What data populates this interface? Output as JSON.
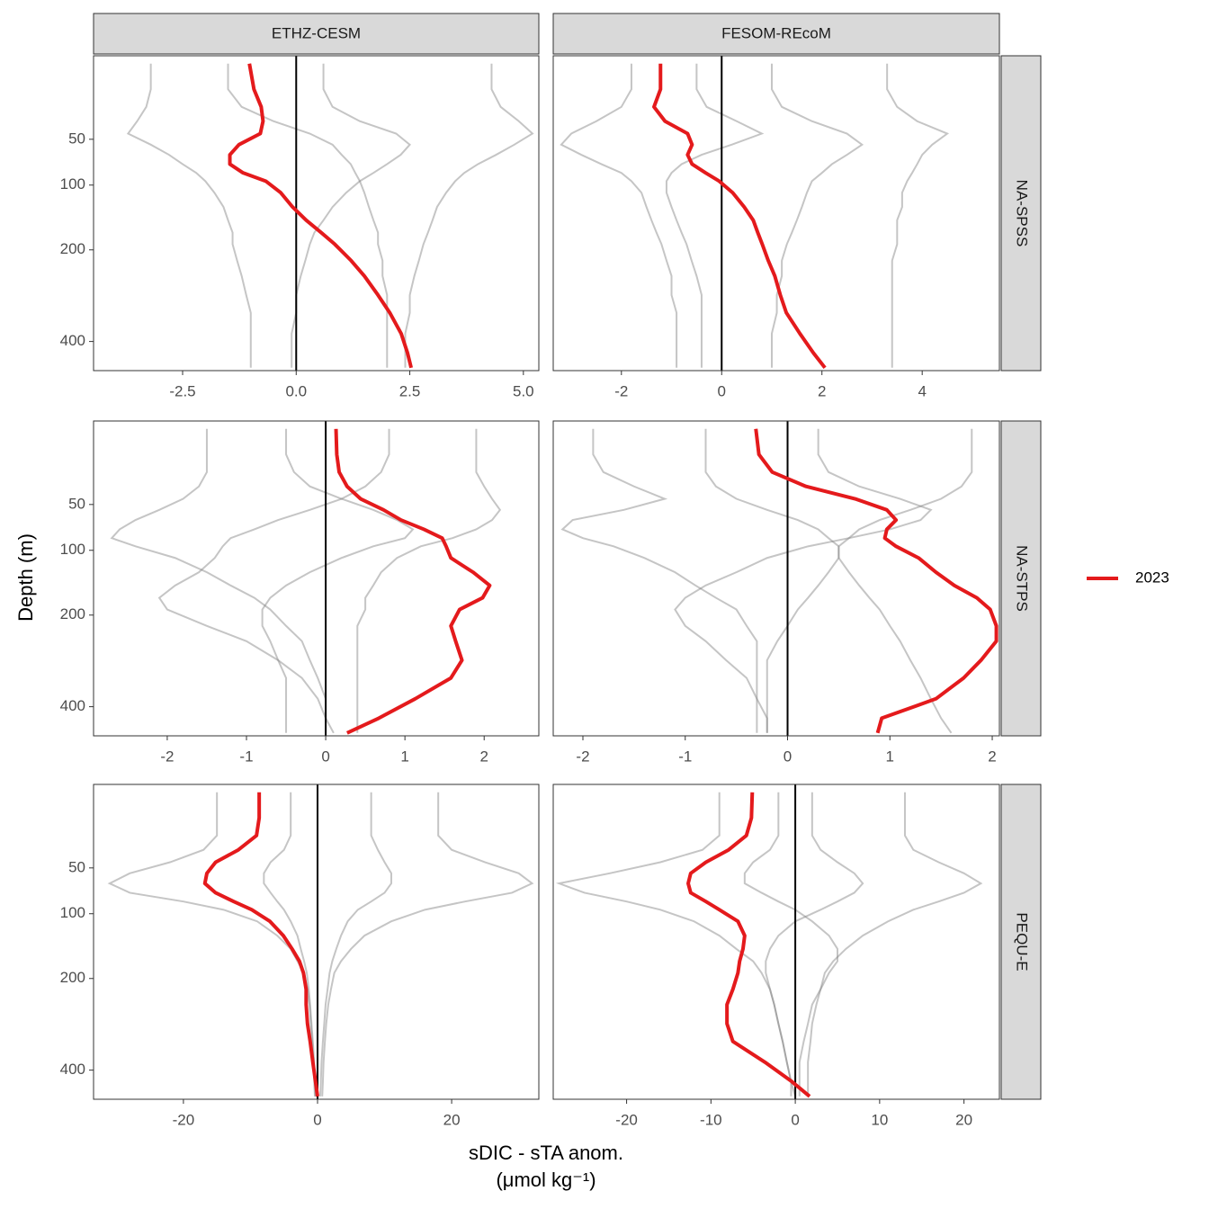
{
  "chart_data": {
    "type": "line",
    "xlabel": "sDIC - sTA anom.",
    "xunit": "(μmol kg⁻¹)",
    "ylabel": "Depth (m)",
    "columns": [
      "ETHZ-CESM",
      "FESOM-REcoM"
    ],
    "rows": [
      "NA-SPSS",
      "NA-STPS",
      "PEQU-E"
    ],
    "yscale": "sqrt",
    "yreversed": true,
    "ylim": [
      3,
      478
    ],
    "yticks": [
      50,
      100,
      200,
      400
    ],
    "depths": [
      5,
      15,
      25,
      35,
      45,
      55,
      65,
      75,
      85,
      95,
      110,
      130,
      150,
      170,
      190,
      220,
      250,
      290,
      330,
      380,
      430,
      470
    ],
    "vline": 0,
    "highlight": {
      "name": "2023",
      "color": "#e41a1c"
    },
    "others_color": "#7f7f7f",
    "panels": [
      {
        "xlim": [
          -4.46,
          5.34
        ],
        "xticks": [
          -2.5,
          {
            "value": 0,
            "label": "0.0"
          },
          2.5,
          {
            "value": 5,
            "label": "5.0"
          }
        ],
        "values": [
          -1.03,
          -0.93,
          -0.77,
          -0.73,
          -0.79,
          -1.26,
          -1.46,
          -1.46,
          -1.17,
          -0.67,
          -0.34,
          -0.08,
          0.22,
          0.55,
          0.85,
          1.21,
          1.5,
          1.8,
          2.06,
          2.31,
          2.45,
          2.53
        ],
        "others": [
          [
            -3.2,
            -3.2,
            -3.3,
            -3.5,
            -3.7,
            -3.2,
            -2.8,
            -2.5,
            -2.2,
            -2.0,
            -1.8,
            -1.6,
            -1.5,
            -1.4,
            -1.4,
            -1.3,
            -1.2,
            -1.1,
            -1.0,
            -1.0,
            -1.0,
            -1.0
          ],
          [
            4.3,
            4.3,
            4.5,
            4.9,
            5.2,
            4.8,
            4.4,
            4.0,
            3.7,
            3.5,
            3.3,
            3.1,
            3.0,
            2.9,
            2.8,
            2.7,
            2.6,
            2.5,
            2.5,
            2.4,
            2.4,
            2.4
          ],
          [
            0.6,
            0.6,
            0.8,
            1.4,
            2.2,
            2.5,
            2.3,
            2.0,
            1.7,
            1.4,
            1.1,
            0.8,
            0.6,
            0.4,
            0.3,
            0.2,
            0.1,
            0.0,
            0.0,
            -0.1,
            -0.1,
            -0.1
          ],
          [
            -1.5,
            -1.5,
            -1.2,
            -0.5,
            0.3,
            0.8,
            1.0,
            1.2,
            1.3,
            1.4,
            1.5,
            1.6,
            1.7,
            1.8,
            1.8,
            1.9,
            1.9,
            2.0,
            2.0,
            2.0,
            2.0,
            2.0
          ]
        ]
      },
      {
        "xlim": [
          -3.36,
          5.54
        ],
        "xticks": [
          -2,
          0,
          2,
          4
        ],
        "values": [
          -1.22,
          -1.22,
          -1.35,
          -1.13,
          -0.68,
          -0.59,
          -0.68,
          -0.59,
          -0.32,
          -0.05,
          0.22,
          0.45,
          0.63,
          0.72,
          0.81,
          0.93,
          1.06,
          1.17,
          1.29,
          1.56,
          1.83,
          2.06
        ],
        "others": [
          [
            -1.8,
            -1.8,
            -2.0,
            -2.5,
            -3.0,
            -3.2,
            -2.8,
            -2.4,
            -2.0,
            -1.8,
            -1.6,
            -1.5,
            -1.4,
            -1.3,
            -1.2,
            -1.1,
            -1.0,
            -1.0,
            -0.9,
            -0.9,
            -0.9,
            -0.9
          ],
          [
            3.3,
            3.3,
            3.5,
            3.9,
            4.5,
            4.2,
            4.0,
            3.9,
            3.8,
            3.7,
            3.6,
            3.6,
            3.5,
            3.5,
            3.5,
            3.4,
            3.4,
            3.4,
            3.4,
            3.4,
            3.4,
            3.4
          ],
          [
            1.0,
            1.0,
            1.2,
            1.8,
            2.5,
            2.8,
            2.5,
            2.2,
            2.0,
            1.8,
            1.7,
            1.6,
            1.5,
            1.4,
            1.3,
            1.2,
            1.2,
            1.1,
            1.1,
            1.0,
            1.0,
            1.0
          ],
          [
            -0.5,
            -0.5,
            -0.3,
            0.3,
            0.8,
            0.2,
            -0.4,
            -0.8,
            -1.0,
            -1.1,
            -1.1,
            -1.0,
            -0.9,
            -0.8,
            -0.7,
            -0.6,
            -0.5,
            -0.4,
            -0.4,
            -0.4,
            -0.4,
            -0.4
          ]
        ]
      },
      {
        "xlim": [
          -2.93,
          2.69
        ],
        "xticks": [
          -2,
          -1,
          0,
          1,
          2
        ],
        "values": [
          0.13,
          0.14,
          0.17,
          0.27,
          0.44,
          0.73,
          0.95,
          1.24,
          1.47,
          1.52,
          1.58,
          1.86,
          2.07,
          1.98,
          1.69,
          1.58,
          1.64,
          1.72,
          1.58,
          1.13,
          0.67,
          0.27
        ],
        "others": [
          [
            -1.5,
            -1.5,
            -1.5,
            -1.6,
            -1.8,
            -2.1,
            -2.4,
            -2.6,
            -2.7,
            -2.4,
            -1.9,
            -1.5,
            -1.2,
            -0.9,
            -0.7,
            -0.5,
            -0.3,
            -0.2,
            -0.1,
            0.0,
            0.0,
            0.0
          ],
          [
            1.9,
            1.9,
            1.9,
            2.0,
            2.1,
            2.2,
            2.1,
            1.9,
            1.6,
            1.2,
            0.9,
            0.7,
            0.6,
            0.5,
            0.5,
            0.4,
            0.4,
            0.4,
            0.4,
            0.4,
            0.4,
            0.4
          ],
          [
            -0.5,
            -0.5,
            -0.4,
            -0.2,
            0.2,
            0.6,
            0.9,
            1.1,
            1.0,
            0.6,
            0.2,
            -0.2,
            -0.5,
            -0.7,
            -0.8,
            -0.8,
            -0.7,
            -0.6,
            -0.5,
            -0.5,
            -0.5,
            -0.5
          ],
          [
            0.8,
            0.8,
            0.7,
            0.5,
            0.2,
            -0.2,
            -0.6,
            -0.9,
            -1.2,
            -1.3,
            -1.4,
            -1.6,
            -1.9,
            -2.1,
            -2.0,
            -1.5,
            -1.0,
            -0.6,
            -0.3,
            -0.1,
            0.0,
            0.1
          ]
        ]
      },
      {
        "xlim": [
          -2.29,
          2.07
        ],
        "xticks": [
          -2,
          -1,
          0,
          1,
          2
        ],
        "values": [
          -0.31,
          -0.28,
          -0.15,
          0.18,
          0.66,
          0.97,
          1.06,
          0.97,
          0.95,
          1.06,
          1.28,
          1.45,
          1.63,
          1.85,
          1.98,
          2.04,
          2.04,
          1.89,
          1.72,
          1.45,
          0.92,
          0.88
        ],
        "others": [
          [
            -1.9,
            -1.9,
            -1.8,
            -1.5,
            -1.2,
            -1.6,
            -2.1,
            -2.2,
            -2.0,
            -1.7,
            -1.4,
            -1.1,
            -0.9,
            -0.7,
            -0.5,
            -0.4,
            -0.3,
            -0.3,
            -0.3,
            -0.3,
            -0.3,
            -0.3
          ],
          [
            1.8,
            1.8,
            1.8,
            1.7,
            1.5,
            1.2,
            0.9,
            0.7,
            0.6,
            0.5,
            0.5,
            0.6,
            0.7,
            0.8,
            0.9,
            1.0,
            1.1,
            1.2,
            1.3,
            1.4,
            1.5,
            1.6
          ],
          [
            0.3,
            0.3,
            0.4,
            0.7,
            1.1,
            1.4,
            1.3,
            1.0,
            0.6,
            0.2,
            -0.2,
            -0.5,
            -0.8,
            -1.0,
            -1.1,
            -1.0,
            -0.8,
            -0.6,
            -0.4,
            -0.3,
            -0.2,
            -0.2
          ],
          [
            -0.8,
            -0.8,
            -0.8,
            -0.7,
            -0.5,
            -0.2,
            0.1,
            0.3,
            0.4,
            0.5,
            0.5,
            0.4,
            0.3,
            0.2,
            0.1,
            0.0,
            -0.1,
            -0.2,
            -0.2,
            -0.2,
            -0.2,
            -0.2
          ]
        ]
      },
      {
        "xlim": [
          -33.4,
          33.0
        ],
        "xticks": [
          -20,
          0,
          20
        ],
        "values": [
          -8.7,
          -8.7,
          -9.1,
          -11.8,
          -15.2,
          -16.5,
          -16.8,
          -15.2,
          -12.5,
          -9.8,
          -7.1,
          -5.1,
          -3.8,
          -2.7,
          -2.1,
          -1.7,
          -1.7,
          -1.5,
          -1.1,
          -0.7,
          -0.3,
          0
        ],
        "others": [
          [
            -15,
            -15,
            -15,
            -17,
            -22,
            -28,
            -31,
            -28,
            -20,
            -14,
            -9,
            -6,
            -4,
            -3,
            -2,
            -1.5,
            -1.2,
            -1,
            -0.8,
            -0.6,
            -0.5,
            -0.4
          ],
          [
            18,
            18,
            18,
            20,
            25,
            30,
            32,
            29,
            22,
            16,
            11,
            7,
            5,
            3.5,
            2.5,
            2,
            1.6,
            1.3,
            1.1,
            0.9,
            0.8,
            0.7
          ],
          [
            -4,
            -4,
            -4,
            -5,
            -7,
            -8,
            -8,
            -7,
            -6,
            -5,
            -4,
            -3,
            -2.5,
            -2,
            -1.6,
            -1.3,
            -1.1,
            -0.9,
            -0.7,
            -0.5,
            -0.4,
            -0.3
          ],
          [
            8,
            8,
            8,
            9,
            10,
            11,
            11,
            10,
            8,
            6,
            4.5,
            3.5,
            2.8,
            2.2,
            1.8,
            1.5,
            1.2,
            1,
            0.8,
            0.6,
            0.5,
            0.4
          ]
        ]
      },
      {
        "xlim": [
          -28.7,
          24.2
        ],
        "xticks": [
          -20,
          -10,
          0,
          10,
          20
        ],
        "values": [
          -5.1,
          -5.2,
          -5.8,
          -7.9,
          -10.6,
          -12.4,
          -12.7,
          -12.4,
          -10.6,
          -9.0,
          -6.8,
          -6.0,
          -6.2,
          -6.6,
          -6.8,
          -7.4,
          -8.1,
          -8.1,
          -7.4,
          -3.6,
          -0.4,
          1.7
        ],
        "others": [
          [
            -9,
            -9,
            -9,
            -11,
            -16,
            -22,
            -28,
            -25,
            -20,
            -16,
            -12,
            -9,
            -7,
            -5,
            -4,
            -3,
            -2.5,
            -2,
            -1.5,
            -1,
            -0.5,
            0
          ],
          [
            13,
            13,
            13,
            14,
            17,
            20,
            22,
            20,
            17,
            14,
            11,
            8,
            6,
            4.5,
            3.5,
            3,
            2.5,
            2,
            1.8,
            1.5,
            1.5,
            1.5
          ],
          [
            2,
            2,
            2,
            3,
            5,
            7,
            8,
            7,
            5,
            3,
            0,
            -2,
            -3,
            -3.5,
            -3.5,
            -3,
            -2.5,
            -2,
            -1.5,
            -1,
            -0.5,
            -0.5
          ],
          [
            -2,
            -2,
            -2,
            -3,
            -5,
            -6,
            -6,
            -4,
            -2,
            0,
            2,
            4,
            5,
            5,
            4,
            3,
            2,
            1.5,
            1,
            0.5,
            0.5,
            0.5
          ]
        ]
      }
    ]
  }
}
